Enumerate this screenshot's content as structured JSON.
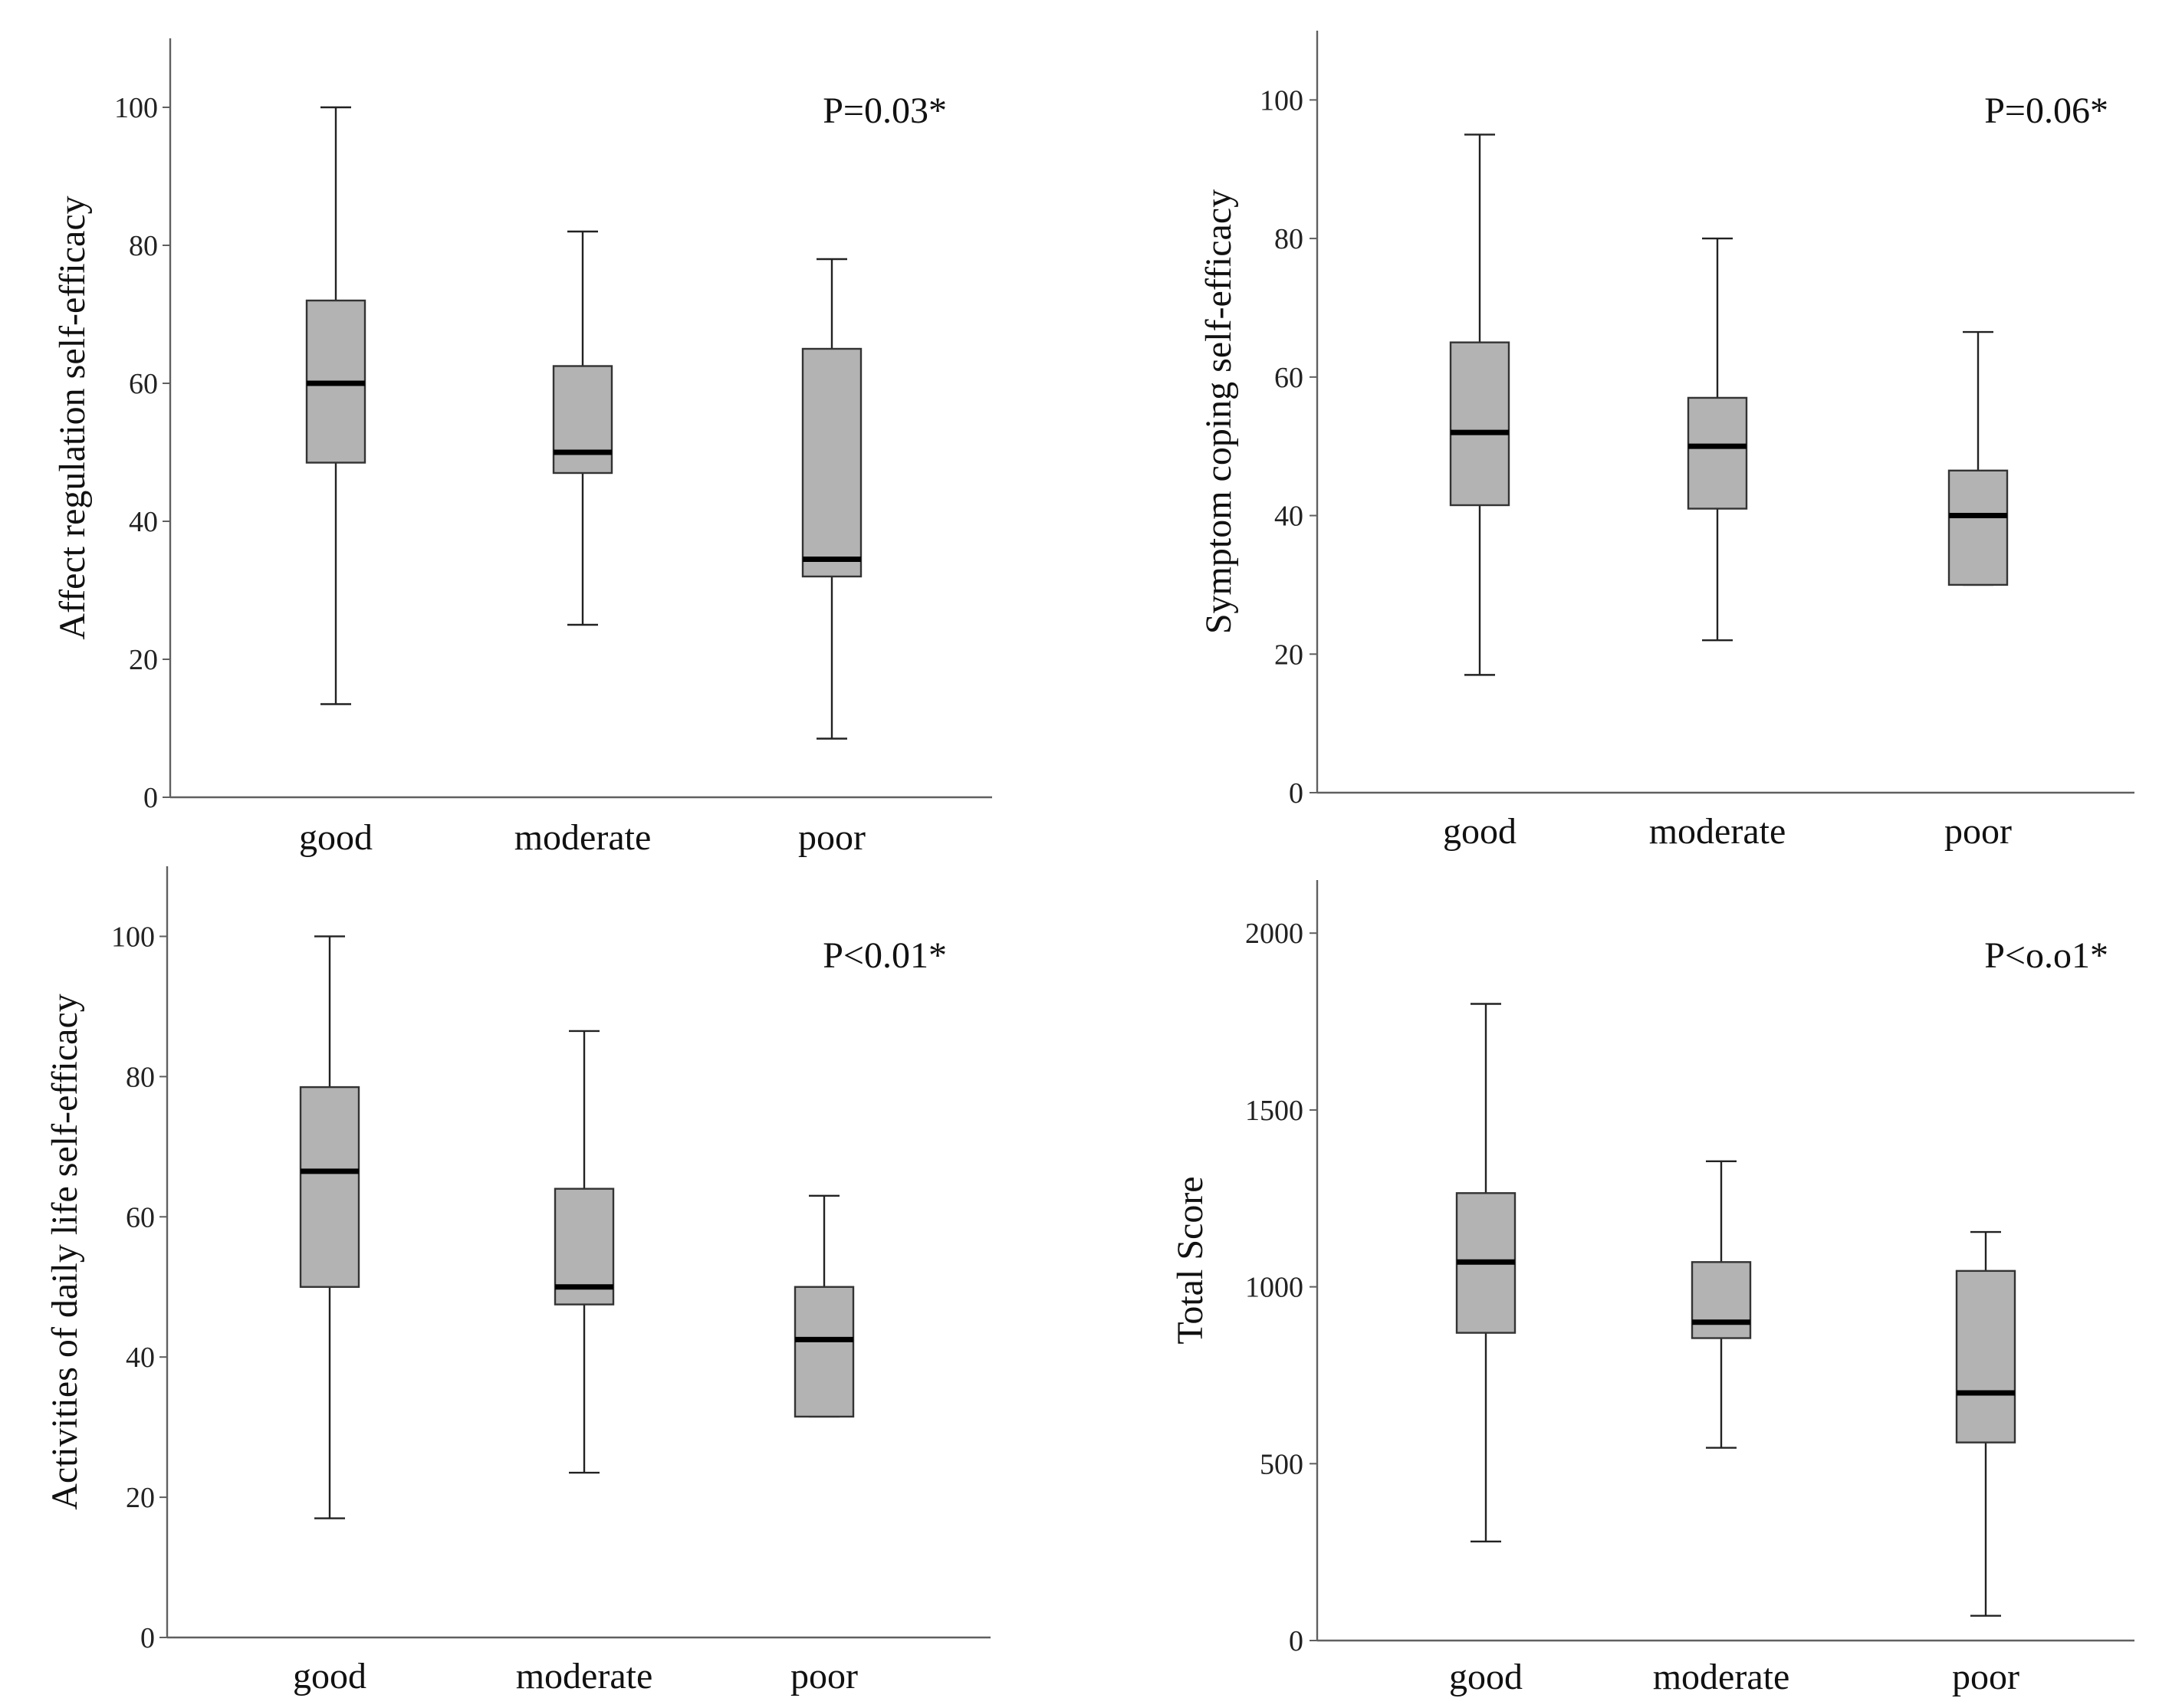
{
  "colors": {
    "box_fill": "#b3b3b3",
    "median": "#000000",
    "axis": "#606060"
  },
  "chart_data": [
    {
      "type": "box",
      "ylabel": "Affect regulation self-efficacy",
      "annotation": "P=0.03*",
      "categories": [
        "good",
        "moderate",
        "poor"
      ],
      "ylim": [
        0,
        110
      ],
      "yticks": [
        0,
        20,
        40,
        60,
        80,
        100
      ],
      "boxes": [
        {
          "category": "good",
          "whisker_low": 13.5,
          "q1": 48.5,
          "median": 60,
          "q3": 72,
          "whisker_high": 100
        },
        {
          "category": "moderate",
          "whisker_low": 25,
          "q1": 47,
          "median": 50,
          "q3": 62.5,
          "whisker_high": 82
        },
        {
          "category": "poor",
          "whisker_low": 8.5,
          "q1": 32,
          "median": 34.5,
          "q3": 65,
          "whisker_high": 78
        }
      ]
    },
    {
      "type": "box",
      "ylabel": "Symptom coping self-efficacy",
      "annotation": "P=0.06*",
      "categories": [
        "good",
        "moderate",
        "poor"
      ],
      "ylim": [
        0,
        110
      ],
      "yticks": [
        0,
        20,
        40,
        60,
        80,
        100
      ],
      "boxes": [
        {
          "category": "good",
          "whisker_low": 17,
          "q1": 41.5,
          "median": 52,
          "q3": 65,
          "whisker_high": 95
        },
        {
          "category": "moderate",
          "whisker_low": 22,
          "q1": 41,
          "median": 50,
          "q3": 57,
          "whisker_high": 80
        },
        {
          "category": "poor",
          "whisker_low": 30,
          "q1": 30,
          "median": 40,
          "q3": 46.5,
          "whisker_high": 66.5
        }
      ]
    },
    {
      "type": "box",
      "ylabel": "Activities of daily life self-efficacy",
      "annotation": "P<0.01*",
      "categories": [
        "good",
        "moderate",
        "poor"
      ],
      "ylim": [
        0,
        110
      ],
      "yticks": [
        0,
        20,
        40,
        60,
        80,
        100
      ],
      "boxes": [
        {
          "category": "good",
          "whisker_low": 17,
          "q1": 50,
          "median": 66.5,
          "q3": 78.5,
          "whisker_high": 100
        },
        {
          "category": "moderate",
          "whisker_low": 23.5,
          "q1": 47.5,
          "median": 50,
          "q3": 64,
          "whisker_high": 86.5
        },
        {
          "category": "poor",
          "whisker_low": 31.5,
          "q1": 31.5,
          "median": 42.5,
          "q3": 50,
          "whisker_high": 63
        }
      ]
    },
    {
      "type": "box",
      "ylabel": "Total Score",
      "annotation": "P<o.o1*",
      "categories": [
        "good",
        "moderate",
        "poor"
      ],
      "ylim": [
        0,
        2150
      ],
      "yticks": [
        0,
        500,
        1000,
        1500,
        2000
      ],
      "boxes": [
        {
          "category": "good",
          "whisker_low": 280,
          "q1": 870,
          "median": 1070,
          "q3": 1265,
          "whisker_high": 1800
        },
        {
          "category": "moderate",
          "whisker_low": 545,
          "q1": 855,
          "median": 900,
          "q3": 1070,
          "whisker_high": 1355
        },
        {
          "category": "poor",
          "whisker_low": 70,
          "q1": 560,
          "median": 700,
          "q3": 1045,
          "whisker_high": 1155
        }
      ]
    }
  ]
}
